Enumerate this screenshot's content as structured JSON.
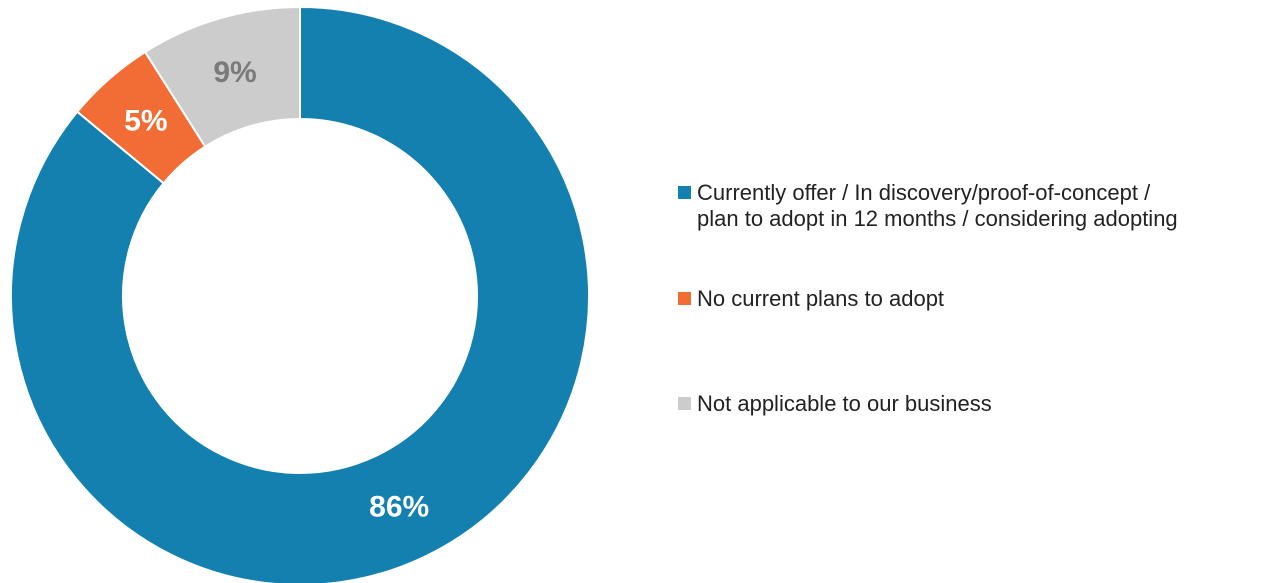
{
  "chart_data": {
    "type": "pie",
    "donut": true,
    "categories": [
      "Currently offer / In discovery/proof-of-concept / plan to adopt in 12 months / considering adopting",
      "No current plans to adopt",
      "Not applicable to our business"
    ],
    "values": [
      86,
      5,
      9
    ],
    "data_labels": [
      "86%",
      "5%",
      "9%"
    ],
    "colors": [
      "#1380b0",
      "#f26d35",
      "#cccccc"
    ],
    "label_colors": [
      "#ffffff",
      "#ffffff",
      "#7a7a7a"
    ],
    "legend_position": "right",
    "title": "",
    "start_angle": "12 o'clock",
    "direction": "clockwise"
  },
  "legend": {
    "items": [
      {
        "line1": "Currently offer / In discovery/proof-of-concept /",
        "line2": "plan to adopt in 12 months / considering adopting",
        "color": "#1380b0"
      },
      {
        "line1": "No current plans to adopt",
        "line2": "",
        "color": "#f26d35"
      },
      {
        "line1": "Not applicable to our business",
        "line2": "",
        "color": "#cccccc"
      }
    ]
  }
}
